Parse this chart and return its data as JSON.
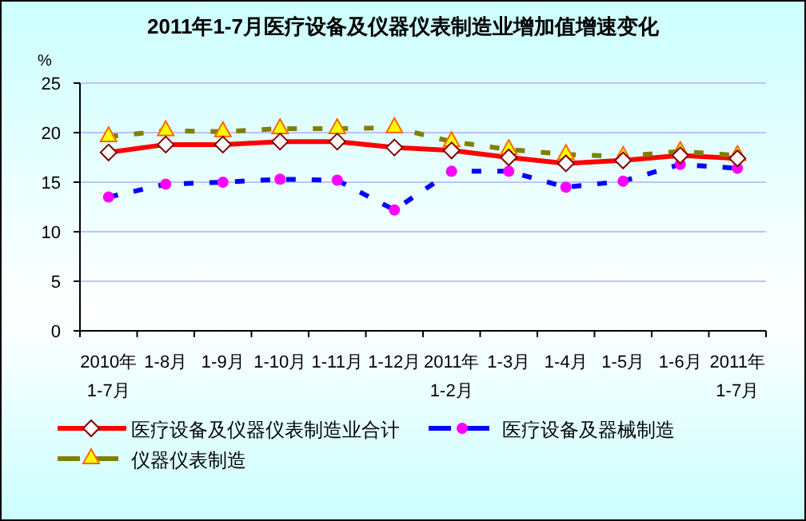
{
  "chart_data": {
    "type": "line",
    "title": "2011年1-7月医疗设备及仪器仪表制造业增加值增速变化",
    "ylabel": "%",
    "categories": [
      "2010年\n1-7月",
      "1-8月",
      "1-9月",
      "1-10月",
      "1-11月",
      "1-12月",
      "2011年\n1-2月",
      "1-3月",
      "1-4月",
      "1-5月",
      "1-6月",
      "2011年\n1-7月"
    ],
    "series": [
      {
        "name": "医疗设备及仪器仪表制造业合计",
        "color": "#ff0000",
        "marker": "diamond",
        "line_style": "solid",
        "values": [
          18.0,
          18.8,
          18.8,
          19.1,
          19.1,
          18.5,
          18.2,
          17.5,
          16.9,
          17.2,
          17.7,
          17.4
        ]
      },
      {
        "name": "医疗设备及器械制造",
        "color": "#0000ff",
        "marker": "circle",
        "line_style": "dashed",
        "values": [
          13.5,
          14.8,
          15.0,
          15.3,
          15.2,
          12.2,
          16.1,
          16.1,
          14.5,
          15.1,
          16.8,
          16.4
        ]
      },
      {
        "name": "仪器仪表制造",
        "color": "#808000",
        "marker": "triangle",
        "line_style": "dashed",
        "values": [
          19.6,
          20.2,
          20.1,
          20.4,
          20.4,
          20.5,
          19.1,
          18.3,
          17.8,
          17.6,
          18.1,
          17.7
        ]
      }
    ],
    "ylim": [
      0,
      25
    ],
    "yticks": [
      0,
      5,
      10,
      15,
      20,
      25
    ],
    "grid": "y",
    "legend": "bottom"
  }
}
